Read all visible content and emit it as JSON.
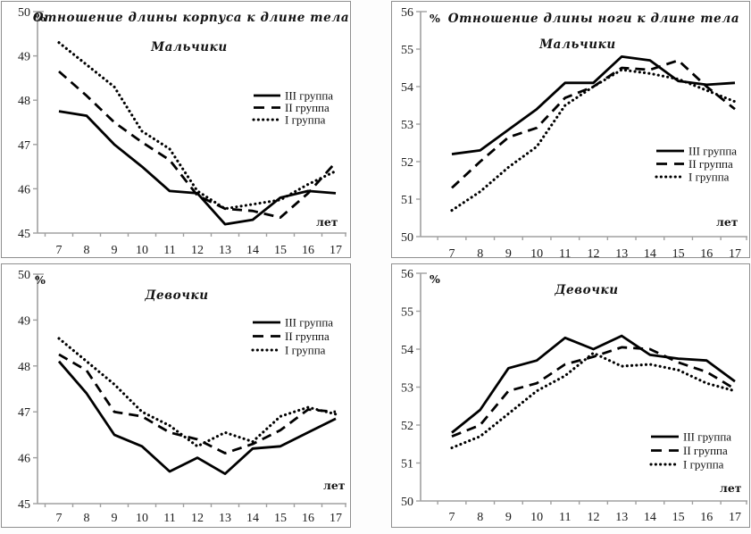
{
  "page": {
    "background": "#ffffff",
    "panel_border_color": "#8f8f8f",
    "axis_color": "#a0a0a0",
    "line_color": "#000000",
    "text_color": "#1c1c1c"
  },
  "chart_data": [
    {
      "type": "line",
      "title": "Отношение длины корпуса к длине тела",
      "subtitle": "Мальчики",
      "ylabel": "%",
      "xlabel": "лет",
      "categories": [
        7,
        8,
        9,
        10,
        11,
        12,
        13,
        14,
        15,
        16,
        17
      ],
      "ylim": [
        45,
        50
      ],
      "ytick_step": 1,
      "grid": false,
      "legend_position": "upper-right-inside",
      "series": [
        {
          "name": "III группа",
          "style": "solid",
          "values": [
            47.75,
            47.65,
            47.0,
            46.5,
            45.95,
            45.9,
            45.2,
            45.3,
            45.8,
            45.95,
            45.9
          ]
        },
        {
          "name": "II группа",
          "style": "dashed",
          "values": [
            48.65,
            48.1,
            47.5,
            47.05,
            46.65,
            45.85,
            45.55,
            45.5,
            45.35,
            45.9,
            46.6
          ]
        },
        {
          "name": "I группа",
          "style": "dotted",
          "values": [
            49.3,
            48.8,
            48.3,
            47.3,
            46.9,
            45.95,
            45.55,
            45.65,
            45.75,
            46.1,
            46.4
          ]
        }
      ]
    },
    {
      "type": "line",
      "title": "Отношение длины ноги к длине тела",
      "subtitle": "Мальчики",
      "ylabel": "%",
      "xlabel": "лет",
      "categories": [
        7,
        8,
        9,
        10,
        11,
        12,
        13,
        14,
        15,
        16,
        17
      ],
      "ylim": [
        50,
        56
      ],
      "ytick_step": 1,
      "grid": false,
      "legend_position": "middle-right-inside",
      "series": [
        {
          "name": "III группа",
          "style": "solid",
          "values": [
            52.2,
            52.3,
            52.85,
            53.4,
            54.1,
            54.1,
            54.8,
            54.7,
            54.15,
            54.05,
            54.1
          ]
        },
        {
          "name": "II группа",
          "style": "dashed",
          "values": [
            51.3,
            52.0,
            52.65,
            52.9,
            53.7,
            54.0,
            54.5,
            54.45,
            54.7,
            54.0,
            53.4
          ]
        },
        {
          "name": "I группа",
          "style": "dotted",
          "values": [
            50.7,
            51.2,
            51.85,
            52.4,
            53.5,
            54.0,
            54.45,
            54.35,
            54.2,
            53.9,
            53.6
          ]
        }
      ]
    },
    {
      "type": "line",
      "title": "",
      "subtitle": "Девочки",
      "ylabel": "%",
      "xlabel": "лет",
      "categories": [
        7,
        8,
        9,
        10,
        11,
        12,
        13,
        14,
        15,
        16,
        17
      ],
      "ylim": [
        45,
        50
      ],
      "ytick_step": 1,
      "grid": false,
      "legend_position": "upper-right-inside",
      "series": [
        {
          "name": "III группа",
          "style": "solid",
          "values": [
            48.1,
            47.4,
            46.5,
            46.25,
            45.7,
            46.0,
            45.65,
            46.2,
            46.25,
            46.55,
            46.85
          ]
        },
        {
          "name": "II группа",
          "style": "dashed",
          "values": [
            48.25,
            47.9,
            47.0,
            46.9,
            46.55,
            46.4,
            46.1,
            46.3,
            46.6,
            47.05,
            47.0
          ]
        },
        {
          "name": "I группа",
          "style": "dotted",
          "values": [
            48.6,
            48.1,
            47.6,
            47.0,
            46.7,
            46.25,
            46.55,
            46.35,
            46.9,
            47.1,
            46.95
          ]
        }
      ]
    },
    {
      "type": "line",
      "title": "",
      "subtitle": "Девочки",
      "ylabel": "%",
      "xlabel": "лет",
      "categories": [
        7,
        8,
        9,
        10,
        11,
        12,
        13,
        14,
        15,
        16,
        17
      ],
      "ylim": [
        50,
        56
      ],
      "ytick_step": 1,
      "grid": false,
      "legend_position": "lower-right-inside",
      "series": [
        {
          "name": "III группа",
          "style": "solid",
          "values": [
            51.8,
            52.4,
            53.5,
            53.7,
            54.3,
            54.0,
            54.35,
            53.85,
            53.75,
            53.7,
            53.15
          ]
        },
        {
          "name": "II группа",
          "style": "dashed",
          "values": [
            51.7,
            52.0,
            52.9,
            53.1,
            53.6,
            53.8,
            54.05,
            54.0,
            53.65,
            53.4,
            52.95
          ]
        },
        {
          "name": "I группа",
          "style": "dotted",
          "values": [
            51.4,
            51.7,
            52.3,
            52.9,
            53.3,
            53.9,
            53.55,
            53.6,
            53.45,
            53.1,
            52.9
          ]
        }
      ]
    }
  ]
}
